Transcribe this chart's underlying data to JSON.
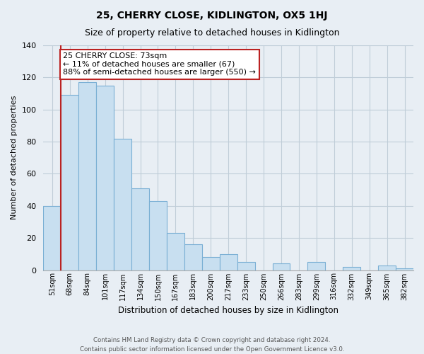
{
  "title1": "25, CHERRY CLOSE, KIDLINGTON, OX5 1HJ",
  "title2": "Size of property relative to detached houses in Kidlington",
  "xlabel": "Distribution of detached houses by size in Kidlington",
  "ylabel": "Number of detached properties",
  "bar_labels": [
    "51sqm",
    "68sqm",
    "84sqm",
    "101sqm",
    "117sqm",
    "134sqm",
    "150sqm",
    "167sqm",
    "183sqm",
    "200sqm",
    "217sqm",
    "233sqm",
    "250sqm",
    "266sqm",
    "283sqm",
    "299sqm",
    "316sqm",
    "332sqm",
    "349sqm",
    "365sqm",
    "382sqm"
  ],
  "bar_values": [
    40,
    109,
    117,
    115,
    82,
    51,
    43,
    23,
    16,
    8,
    10,
    5,
    0,
    4,
    0,
    5,
    0,
    2,
    0,
    3,
    1
  ],
  "bar_color": "#c8dff0",
  "bar_edge_color": "#7aafd4",
  "highlight_line_color": "#bb2222",
  "annotation_box_text": "25 CHERRY CLOSE: 73sqm\n← 11% of detached houses are smaller (67)\n88% of semi-detached houses are larger (550) →",
  "annotation_box_facecolor": "white",
  "annotation_box_edgecolor": "#bb2222",
  "ylim": [
    0,
    140
  ],
  "yticks": [
    0,
    20,
    40,
    60,
    80,
    100,
    120,
    140
  ],
  "footer_line1": "Contains HM Land Registry data © Crown copyright and database right 2024.",
  "footer_line2": "Contains public sector information licensed under the Open Government Licence v3.0.",
  "background_color": "#e8eef4",
  "plot_bg_color": "#e8eef4",
  "grid_color": "#c0cdd8",
  "title1_fontsize": 10,
  "title2_fontsize": 9
}
